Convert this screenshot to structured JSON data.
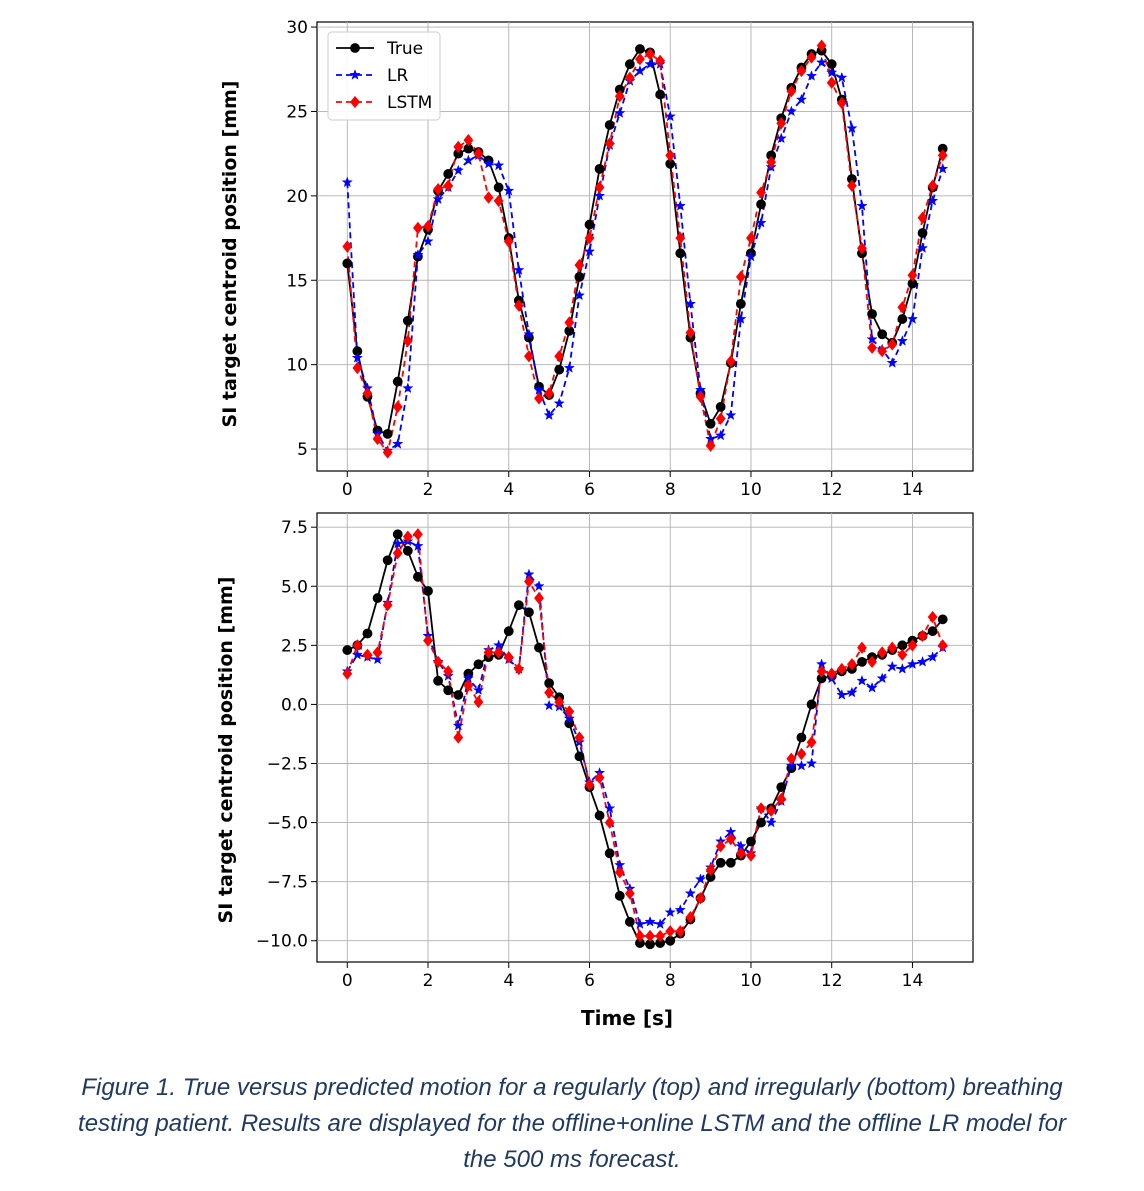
{
  "chart_data": [
    {
      "type": "line",
      "title": "",
      "xlabel": "",
      "ylabel": "SI target centroid position [mm]",
      "xlim": [
        -0.75,
        15.5
      ],
      "ylim": [
        3.7,
        30.3
      ],
      "xticks": [
        0,
        2,
        4,
        6,
        8,
        10,
        12,
        14
      ],
      "yticks": [
        5,
        10,
        15,
        20,
        25,
        30
      ],
      "ytick_labels": [
        "5",
        "10",
        "15",
        "20",
        "25",
        "30"
      ],
      "grid": true,
      "legend": "top-left",
      "x": [
        0,
        0.25,
        0.5,
        0.75,
        1.0,
        1.25,
        1.5,
        1.75,
        2.0,
        2.25,
        2.5,
        2.75,
        3.0,
        3.25,
        3.5,
        3.75,
        4.0,
        4.25,
        4.5,
        4.75,
        5.0,
        5.25,
        5.5,
        5.75,
        6.0,
        6.25,
        6.5,
        6.75,
        7.0,
        7.25,
        7.5,
        7.75,
        8.0,
        8.25,
        8.5,
        8.75,
        9.0,
        9.25,
        9.5,
        9.75,
        10.0,
        10.25,
        10.5,
        10.75,
        11.0,
        11.25,
        11.5,
        11.75,
        12.0,
        12.25,
        12.5,
        12.75,
        13.0,
        13.25,
        13.5,
        13.75,
        14.0,
        14.25,
        14.5,
        14.75
      ],
      "series": [
        {
          "name": "True",
          "color": "#000000",
          "marker": "circle",
          "dash": "solid",
          "values": [
            16.0,
            10.8,
            8.1,
            6.1,
            5.9,
            9.0,
            12.6,
            16.4,
            18.0,
            20.3,
            21.3,
            22.5,
            22.8,
            22.6,
            22.1,
            20.5,
            17.5,
            13.8,
            11.6,
            8.7,
            8.2,
            9.7,
            12.0,
            15.2,
            18.3,
            21.6,
            24.2,
            26.3,
            27.8,
            28.7,
            28.5,
            26.0,
            21.9,
            16.6,
            11.6,
            8.3,
            6.5,
            7.5,
            10.1,
            13.6,
            16.6,
            19.5,
            22.4,
            24.6,
            26.4,
            27.6,
            28.4,
            28.6,
            27.8,
            25.7,
            21.0,
            16.6,
            13.0,
            11.8,
            11.3,
            12.7,
            14.8,
            17.8,
            20.5,
            22.8
          ]
        },
        {
          "name": "LR",
          "color": "#0000ff",
          "marker": "star",
          "dash": "dashed",
          "values": [
            20.8,
            10.4,
            8.6,
            5.9,
            4.9,
            5.3,
            8.6,
            16.5,
            17.3,
            19.8,
            20.5,
            21.5,
            22.1,
            22.4,
            21.9,
            21.8,
            20.3,
            15.6,
            11.8,
            8.5,
            7.0,
            7.7,
            9.8,
            14.1,
            16.7,
            20.0,
            23.0,
            24.9,
            26.8,
            27.4,
            27.8,
            27.8,
            24.7,
            19.4,
            13.6,
            8.5,
            5.6,
            5.8,
            7.0,
            12.7,
            16.4,
            18.4,
            21.7,
            23.4,
            25.0,
            25.7,
            27.1,
            27.9,
            27.3,
            27.0,
            24.0,
            19.4,
            11.5,
            10.9,
            10.1,
            11.4,
            12.7,
            16.9,
            19.7,
            21.6
          ]
        },
        {
          "name": "LSTM",
          "color": "#ff0000",
          "marker": "diamond",
          "dash": "dashed",
          "values": [
            17.0,
            9.8,
            8.3,
            5.6,
            4.8,
            7.5,
            11.4,
            18.1,
            18.2,
            20.4,
            20.6,
            22.9,
            23.3,
            22.5,
            19.9,
            19.7,
            17.3,
            13.5,
            10.5,
            8.0,
            8.3,
            10.5,
            12.5,
            15.9,
            17.5,
            20.5,
            23.1,
            25.9,
            27.0,
            28.1,
            28.4,
            28.0,
            22.4,
            17.5,
            11.9,
            8.1,
            5.2,
            6.8,
            10.2,
            15.2,
            17.5,
            20.2,
            22.0,
            24.3,
            26.2,
            27.4,
            28.2,
            28.9,
            26.7,
            25.5,
            20.6,
            16.9,
            11.0,
            10.8,
            11.2,
            13.4,
            15.3,
            18.7,
            20.6,
            22.4
          ]
        }
      ]
    },
    {
      "type": "line",
      "title": "",
      "xlabel": "Time [s]",
      "ylabel": "SI target centroid position [mm]",
      "xlim": [
        -0.75,
        15.5
      ],
      "ylim": [
        -10.9,
        8.1
      ],
      "xticks": [
        0,
        2,
        4,
        6,
        8,
        10,
        12,
        14
      ],
      "yticks": [
        -10,
        -7.5,
        -5,
        -2.5,
        0,
        2.5,
        5,
        7.5
      ],
      "ytick_labels": [
        "−10.0",
        "−7.5",
        "−5.0",
        "−2.5",
        "0.0",
        "2.5",
        "5.0",
        "7.5"
      ],
      "grid": true,
      "legend": "none",
      "x": [
        0,
        0.25,
        0.5,
        0.75,
        1.0,
        1.25,
        1.5,
        1.75,
        2.0,
        2.25,
        2.5,
        2.75,
        3.0,
        3.25,
        3.5,
        3.75,
        4.0,
        4.25,
        4.5,
        4.75,
        5.0,
        5.25,
        5.5,
        5.75,
        6.0,
        6.25,
        6.5,
        6.75,
        7.0,
        7.25,
        7.5,
        7.75,
        8.0,
        8.25,
        8.5,
        8.75,
        9.0,
        9.25,
        9.5,
        9.75,
        10.0,
        10.25,
        10.5,
        10.75,
        11.0,
        11.25,
        11.5,
        11.75,
        12.0,
        12.25,
        12.5,
        12.75,
        13.0,
        13.25,
        13.5,
        13.75,
        14.0,
        14.25,
        14.5,
        14.75
      ],
      "series": [
        {
          "name": "True",
          "color": "#000000",
          "marker": "circle",
          "dash": "solid",
          "values": [
            2.3,
            2.5,
            3.0,
            4.5,
            6.1,
            7.2,
            6.5,
            5.4,
            4.8,
            1.0,
            0.6,
            0.4,
            1.3,
            1.7,
            2.0,
            2.1,
            3.1,
            4.2,
            3.9,
            2.4,
            0.9,
            0.3,
            -0.8,
            -2.2,
            -3.5,
            -4.7,
            -6.3,
            -8.1,
            -9.2,
            -10.1,
            -10.15,
            -10.1,
            -10.0,
            -9.7,
            -9.1,
            -8.2,
            -7.3,
            -6.7,
            -6.7,
            -6.4,
            -5.8,
            -5.0,
            -4.4,
            -3.5,
            -2.7,
            -1.4,
            0.0,
            1.1,
            1.2,
            1.4,
            1.5,
            1.8,
            2.0,
            2.1,
            2.3,
            2.5,
            2.7,
            2.9,
            3.1,
            3.6
          ]
        },
        {
          "name": "LR",
          "color": "#0000ff",
          "marker": "star",
          "dash": "dashed",
          "values": [
            1.4,
            2.1,
            2.0,
            1.9,
            4.3,
            6.8,
            6.9,
            6.7,
            2.9,
            1.8,
            1.2,
            -0.9,
            1.1,
            0.6,
            2.3,
            2.5,
            1.9,
            1.5,
            5.5,
            5.0,
            -0.05,
            -0.1,
            -0.6,
            -1.6,
            -3.3,
            -2.9,
            -4.4,
            -6.8,
            -7.8,
            -9.3,
            -9.2,
            -9.3,
            -8.8,
            -8.7,
            -8.0,
            -7.4,
            -6.9,
            -5.8,
            -5.4,
            -6.0,
            -6.3,
            -4.4,
            -5.0,
            -4.1,
            -2.6,
            -2.6,
            -2.5,
            1.7,
            1.1,
            0.4,
            0.5,
            1.0,
            0.7,
            1.1,
            1.6,
            1.5,
            1.7,
            1.8,
            2.0,
            2.4
          ]
        },
        {
          "name": "LSTM",
          "color": "#ff0000",
          "marker": "diamond",
          "dash": "dashed",
          "values": [
            1.3,
            2.5,
            2.1,
            2.2,
            4.2,
            6.4,
            7.1,
            7.2,
            2.7,
            1.8,
            1.4,
            -1.4,
            0.8,
            0.1,
            2.2,
            2.2,
            2.0,
            1.5,
            5.2,
            4.5,
            0.5,
            0.1,
            -0.3,
            -1.4,
            -3.4,
            -3.1,
            -5.0,
            -7.1,
            -8.0,
            -9.8,
            -9.8,
            -9.8,
            -9.6,
            -9.6,
            -9.0,
            -8.2,
            -7.0,
            -6.0,
            -5.7,
            -6.3,
            -6.4,
            -4.4,
            -4.5,
            -4.0,
            -2.3,
            -2.1,
            -1.6,
            1.4,
            1.3,
            1.5,
            1.7,
            2.4,
            1.8,
            2.2,
            2.4,
            2.1,
            2.5,
            2.9,
            3.7,
            2.5
          ]
        }
      ]
    }
  ],
  "caption": {
    "line1": "Figure 1. True versus predicted motion for a regularly (top) and irregularly (bottom) breathing",
    "line2": "testing patient. Results are displayed for the offline+online LSTM and the offline LR model for",
    "line3": "the 500 ms forecast."
  }
}
